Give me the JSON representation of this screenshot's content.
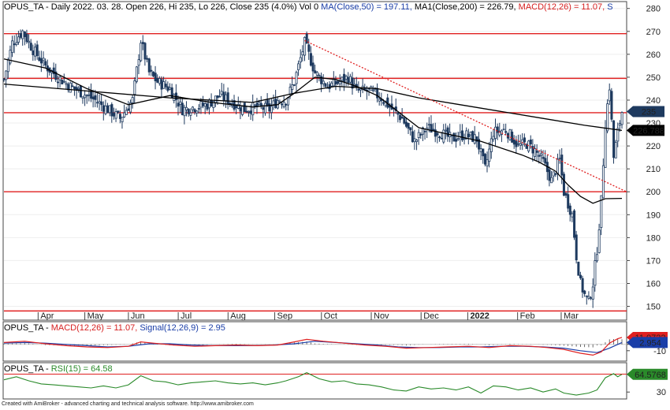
{
  "header": {
    "symbol": "OPUS_TA",
    "parts": [
      {
        "text": "OPUS_TA - Daily 2022. 03. 28. Open 226, Hi 235, Lo 226, Close 235 (4.0%) Vol 0 ",
        "color": "#000000"
      },
      {
        "text": "MA(Close,50) = 197.11, ",
        "color": "#1a3ea8"
      },
      {
        "text": "MA1(Close,200) = 226.79, ",
        "color": "#000000"
      },
      {
        "text": "MACD(12,26) = 11.07, ",
        "color": "#d62020"
      },
      {
        "text": "S",
        "color": "#1a3ea8"
      }
    ]
  },
  "macd_header": {
    "parts": [
      {
        "text": "OPUS_TA - ",
        "color": "#000000"
      },
      {
        "text": "MACD(12,26) = 11.07, ",
        "color": "#d62020"
      },
      {
        "text": "Signal(12,26,9) = 2.95",
        "color": "#1a3ea8"
      }
    ]
  },
  "rsi_header": {
    "parts": [
      {
        "text": "OPUS_TA - ",
        "color": "#000000"
      },
      {
        "text": "RSI(15) = 64.58",
        "color": "#2a8a2a"
      }
    ]
  },
  "footer": "Created with AmiBroker - advanced charting and technical analysis software. http://www.amibroker.com",
  "colors": {
    "candle": "#1e3a5f",
    "ma50": "#000000",
    "ma200": "#000000",
    "hline": "#e02020",
    "trend": "#e02020",
    "macd": "#e02020",
    "signal": "#1a3ea8",
    "rsi": "#2a8a2a"
  },
  "chart_data": [
    {
      "type": "candlestick",
      "y_ticks": [
        150,
        160,
        170,
        180,
        190,
        200,
        210,
        220,
        230,
        240,
        250,
        260,
        270,
        280
      ],
      "ylim": [
        144,
        283
      ],
      "x_labels": [
        "Apr",
        "May",
        "Jun",
        "Jul",
        "Aug",
        "Sep",
        "Oct",
        "Nov",
        "Dec",
        "2022",
        "Feb",
        "Mar"
      ],
      "horizontal_levels": [
        269,
        249.5,
        234.5,
        200,
        148
      ],
      "trendline": {
        "from": {
          "date": "Sep",
          "value": 266
        },
        "to": {
          "date": "end",
          "value": 200
        }
      },
      "price_tags": [
        {
          "label": "235",
          "value": 235,
          "fill": "#1e3a5f",
          "text_color": "#ffffff"
        },
        {
          "label": "226.788",
          "value": 226.788,
          "fill": "#000000",
          "text_color": "#ffffff"
        }
      ],
      "last": {
        "open": 226,
        "high": 235,
        "low": 226,
        "close": 235
      },
      "ma50_last": 197.11,
      "ma200_last": 226.79,
      "close_path": [
        [
          0,
          249
        ],
        [
          4,
          265
        ],
        [
          9,
          270
        ],
        [
          14,
          262
        ],
        [
          20,
          255
        ],
        [
          26,
          250
        ],
        [
          32,
          246
        ],
        [
          38,
          243
        ],
        [
          44,
          240
        ],
        [
          50,
          236
        ],
        [
          56,
          232
        ],
        [
          62,
          240
        ],
        [
          66,
          266
        ],
        [
          70,
          252
        ],
        [
          74,
          248
        ],
        [
          80,
          245
        ],
        [
          86,
          236
        ],
        [
          92,
          237
        ],
        [
          98,
          238
        ],
        [
          104,
          242
        ],
        [
          110,
          239
        ],
        [
          116,
          236
        ],
        [
          122,
          237
        ],
        [
          128,
          236
        ],
        [
          132,
          240
        ],
        [
          136,
          240
        ],
        [
          140,
          248
        ],
        [
          145,
          265
        ],
        [
          150,
          252
        ],
        [
          156,
          246
        ],
        [
          162,
          248
        ],
        [
          166,
          250
        ],
        [
          170,
          244
        ],
        [
          176,
          244
        ],
        [
          182,
          241
        ],
        [
          186,
          237
        ],
        [
          192,
          232
        ],
        [
          198,
          222
        ],
        [
          204,
          228
        ],
        [
          210,
          226
        ],
        [
          216,
          223
        ],
        [
          222,
          225
        ],
        [
          228,
          223
        ],
        [
          232,
          210
        ],
        [
          236,
          226
        ],
        [
          242,
          227
        ],
        [
          248,
          220
        ],
        [
          252,
          221
        ],
        [
          256,
          218
        ],
        [
          260,
          213
        ],
        [
          264,
          205
        ],
        [
          268,
          214
        ],
        [
          270,
          200
        ],
        [
          274,
          190
        ],
        [
          276,
          172
        ],
        [
          278,
          160
        ],
        [
          280,
          155
        ],
        [
          282,
          152
        ],
        [
          284,
          160
        ],
        [
          286,
          175
        ],
        [
          288,
          196
        ],
        [
          290,
          230
        ],
        [
          292,
          246
        ],
        [
          294,
          215
        ],
        [
          296,
          226
        ],
        [
          298,
          235
        ]
      ],
      "ma50_path": [
        [
          0,
          258
        ],
        [
          20,
          254
        ],
        [
          40,
          245
        ],
        [
          60,
          238
        ],
        [
          80,
          242
        ],
        [
          100,
          239
        ],
        [
          120,
          237
        ],
        [
          132,
          238
        ],
        [
          140,
          243
        ],
        [
          150,
          250
        ],
        [
          160,
          249
        ],
        [
          170,
          246
        ],
        [
          180,
          242
        ],
        [
          190,
          235
        ],
        [
          200,
          228
        ],
        [
          210,
          226
        ],
        [
          220,
          224
        ],
        [
          230,
          222
        ],
        [
          240,
          219
        ],
        [
          250,
          216
        ],
        [
          258,
          213
        ],
        [
          266,
          209
        ],
        [
          272,
          203
        ],
        [
          278,
          198
        ],
        [
          284,
          195
        ],
        [
          290,
          197
        ],
        [
          298,
          197.11
        ]
      ],
      "ma200_path": [
        [
          0,
          247
        ],
        [
          40,
          244
        ],
        [
          80,
          241
        ],
        [
          120,
          239
        ],
        [
          140,
          243
        ],
        [
          160,
          246
        ],
        [
          180,
          245
        ],
        [
          200,
          241
        ],
        [
          220,
          238
        ],
        [
          240,
          235
        ],
        [
          260,
          232
        ],
        [
          280,
          229
        ],
        [
          298,
          226.79
        ]
      ]
    },
    {
      "type": "line",
      "name": "MACD(12,26)",
      "y_ticks": [
        -10,
        0
      ],
      "ylim": [
        -24,
        21
      ],
      "macd_last": 11.07,
      "signal_last": 2.954,
      "price_tags": [
        {
          "label": "11.0722",
          "value": 11.07,
          "fill": "#e02020",
          "text_color": "#ffffff"
        },
        {
          "label": "2.954",
          "value": 2.954,
          "fill": "#1a3ea8",
          "text_color": "#ffffff"
        }
      ],
      "macd_path": [
        [
          0,
          3
        ],
        [
          10,
          5
        ],
        [
          20,
          1
        ],
        [
          30,
          -2
        ],
        [
          40,
          -4
        ],
        [
          50,
          -5
        ],
        [
          60,
          -3
        ],
        [
          66,
          4
        ],
        [
          72,
          2
        ],
        [
          82,
          -1
        ],
        [
          92,
          -3
        ],
        [
          102,
          -2
        ],
        [
          112,
          -1
        ],
        [
          122,
          -2
        ],
        [
          132,
          -1
        ],
        [
          140,
          4
        ],
        [
          146,
          8
        ],
        [
          154,
          5
        ],
        [
          164,
          2
        ],
        [
          174,
          -1
        ],
        [
          184,
          -3
        ],
        [
          194,
          -6
        ],
        [
          204,
          -5
        ],
        [
          214,
          -4
        ],
        [
          224,
          -3
        ],
        [
          234,
          -5
        ],
        [
          244,
          -2
        ],
        [
          254,
          -3
        ],
        [
          262,
          -5
        ],
        [
          270,
          -8
        ],
        [
          278,
          -14
        ],
        [
          284,
          -17
        ],
        [
          288,
          -12
        ],
        [
          292,
          2
        ],
        [
          296,
          9
        ],
        [
          298,
          11.07
        ]
      ],
      "signal_path": [
        [
          0,
          2
        ],
        [
          10,
          3
        ],
        [
          20,
          2
        ],
        [
          30,
          0
        ],
        [
          40,
          -2
        ],
        [
          50,
          -4
        ],
        [
          60,
          -3
        ],
        [
          70,
          1
        ],
        [
          80,
          1
        ],
        [
          90,
          -1
        ],
        [
          100,
          -2
        ],
        [
          110,
          -2
        ],
        [
          120,
          -2
        ],
        [
          130,
          -1
        ],
        [
          140,
          1
        ],
        [
          150,
          5
        ],
        [
          160,
          3
        ],
        [
          170,
          1
        ],
        [
          180,
          -1
        ],
        [
          190,
          -4
        ],
        [
          200,
          -5
        ],
        [
          210,
          -5
        ],
        [
          220,
          -4
        ],
        [
          230,
          -4
        ],
        [
          240,
          -3
        ],
        [
          250,
          -3
        ],
        [
          260,
          -4
        ],
        [
          270,
          -6
        ],
        [
          278,
          -10
        ],
        [
          286,
          -13
        ],
        [
          292,
          -6
        ],
        [
          298,
          2.954
        ]
      ]
    },
    {
      "type": "line",
      "name": "RSI(15)",
      "y_ticks": [
        30
      ],
      "ylim": [
        18,
        72
      ],
      "level": 65,
      "last": 64.5768,
      "price_tags": [
        {
          "label": "64.5768",
          "value": 64.58,
          "fill": "#2a8a2a",
          "text_color": "#ffffff"
        }
      ],
      "rsi_path": [
        [
          0,
          54
        ],
        [
          6,
          60
        ],
        [
          12,
          52
        ],
        [
          18,
          46
        ],
        [
          24,
          44
        ],
        [
          30,
          42
        ],
        [
          36,
          40
        ],
        [
          42,
          38
        ],
        [
          48,
          42
        ],
        [
          54,
          38
        ],
        [
          60,
          44
        ],
        [
          66,
          62
        ],
        [
          72,
          52
        ],
        [
          78,
          50
        ],
        [
          84,
          44
        ],
        [
          90,
          48
        ],
        [
          96,
          50
        ],
        [
          102,
          52
        ],
        [
          108,
          48
        ],
        [
          114,
          46
        ],
        [
          120,
          48
        ],
        [
          126,
          44
        ],
        [
          132,
          48
        ],
        [
          136,
          52
        ],
        [
          142,
          60
        ],
        [
          146,
          68
        ],
        [
          152,
          56
        ],
        [
          158,
          50
        ],
        [
          164,
          52
        ],
        [
          170,
          46
        ],
        [
          176,
          44
        ],
        [
          182,
          40
        ],
        [
          188,
          34
        ],
        [
          194,
          32
        ],
        [
          200,
          40
        ],
        [
          206,
          36
        ],
        [
          212,
          38
        ],
        [
          218,
          34
        ],
        [
          224,
          40
        ],
        [
          230,
          28
        ],
        [
          236,
          42
        ],
        [
          242,
          40
        ],
        [
          248,
          34
        ],
        [
          254,
          38
        ],
        [
          260,
          30
        ],
        [
          266,
          36
        ],
        [
          270,
          28
        ],
        [
          276,
          24
        ],
        [
          282,
          28
        ],
        [
          286,
          34
        ],
        [
          290,
          58
        ],
        [
          294,
          66
        ],
        [
          296,
          60
        ],
        [
          298,
          64.58
        ]
      ]
    }
  ]
}
